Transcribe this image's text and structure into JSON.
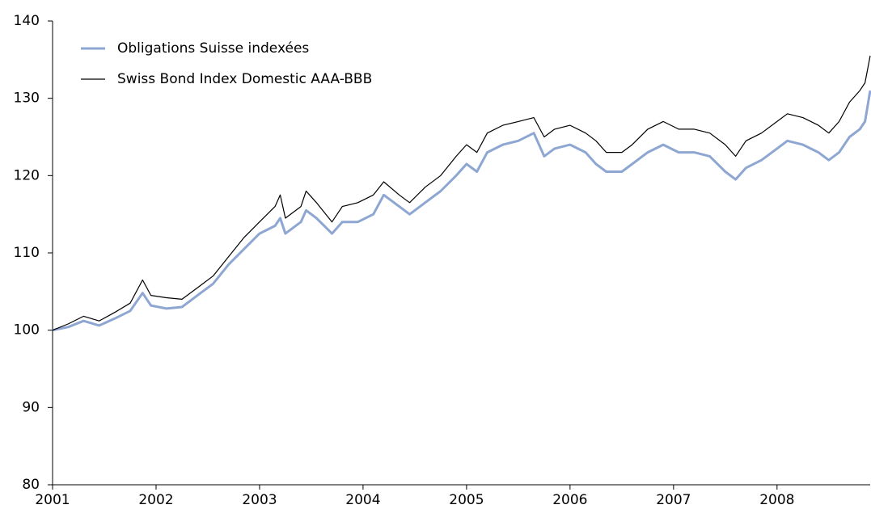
{
  "chart_data": {
    "type": "line",
    "x": [
      2001.0,
      2001.15,
      2001.3,
      2001.45,
      2001.6,
      2001.75,
      2001.87,
      2001.95,
      2002.1,
      2002.25,
      2002.4,
      2002.55,
      2002.7,
      2002.85,
      2003.0,
      2003.15,
      2003.2,
      2003.25,
      2003.4,
      2003.45,
      2003.55,
      2003.7,
      2003.8,
      2003.95,
      2004.1,
      2004.2,
      2004.35,
      2004.45,
      2004.6,
      2004.75,
      2004.9,
      2005.0,
      2005.1,
      2005.2,
      2005.35,
      2005.5,
      2005.65,
      2005.75,
      2005.85,
      2006.0,
      2006.15,
      2006.25,
      2006.35,
      2006.5,
      2006.6,
      2006.75,
      2006.9,
      2007.05,
      2007.2,
      2007.35,
      2007.5,
      2007.6,
      2007.7,
      2007.85,
      2008.0,
      2008.1,
      2008.25,
      2008.4,
      2008.5,
      2008.6,
      2008.7,
      2008.8,
      2008.85,
      2008.9
    ],
    "series": [
      {
        "name": "Obligations Suisse indexées",
        "color": "#8ea6d2",
        "width": 3,
        "values": [
          100,
          100.4,
          101.2,
          100.6,
          101.5,
          102.5,
          104.8,
          103.2,
          102.8,
          103,
          104.5,
          106,
          108.5,
          110.5,
          112.5,
          113.5,
          114.5,
          112.5,
          114,
          115.5,
          114.5,
          112.5,
          114,
          114,
          115,
          117.5,
          116,
          115,
          116.5,
          118,
          120,
          121.5,
          120.5,
          123,
          124,
          124.5,
          125.5,
          122.5,
          123.5,
          124,
          123,
          121.5,
          120.5,
          120.5,
          121.5,
          123,
          124,
          123,
          123,
          122.5,
          120.5,
          119.5,
          121,
          122,
          123.5,
          124.5,
          124,
          123,
          122,
          123,
          125,
          126,
          127,
          131
        ]
      },
      {
        "name": "Swiss Bond Index Domestic AAA-BBB",
        "color": "#000000",
        "width": 1.2,
        "values": [
          100,
          100.8,
          101.8,
          101.2,
          102.3,
          103.5,
          106.5,
          104.5,
          104.2,
          104,
          105.5,
          107,
          109.5,
          112,
          114,
          116,
          117.5,
          114.5,
          116,
          118,
          116.5,
          114,
          116,
          116.5,
          117.5,
          119.2,
          117.5,
          116.5,
          118.5,
          120,
          122.5,
          124,
          123,
          125.5,
          126.5,
          127,
          127.5,
          125,
          126,
          126.5,
          125.5,
          124.5,
          123,
          123,
          124,
          126,
          127,
          126,
          126,
          125.5,
          124,
          122.5,
          124.5,
          125.5,
          127,
          128,
          127.5,
          126.5,
          125.5,
          127,
          129.5,
          131,
          132,
          135.5
        ]
      }
    ],
    "xlim": [
      2001,
      2008.9
    ],
    "xticks": [
      2001,
      2002,
      2003,
      2004,
      2005,
      2006,
      2007,
      2008
    ],
    "ylim": [
      80,
      140
    ],
    "yticks": [
      80,
      90,
      100,
      110,
      120,
      130,
      140
    ],
    "grid": false,
    "legend": "upper left"
  }
}
